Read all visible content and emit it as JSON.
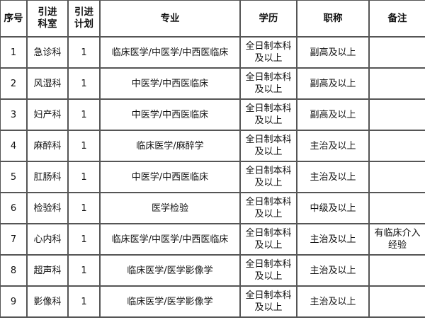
{
  "headers": [
    "序号",
    "引进科室",
    "引进计划",
    "专业",
    "学历",
    "职称",
    "备注"
  ],
  "rows": [
    [
      "1",
      "急诊科",
      "1",
      "临床医学/中医学/中西医临床",
      "全日制本科及以上",
      "副高及以上",
      ""
    ],
    [
      "2",
      "风湿科",
      "1",
      "中医学/中西医临床",
      "全日制本科及以上",
      "副高及以上",
      ""
    ],
    [
      "3",
      "妇产科",
      "1",
      "中医学/中西医临床",
      "全日制本科及以上",
      "副高及以上",
      ""
    ],
    [
      "4",
      "麻醉科",
      "1",
      "临床医学/麻醉学",
      "全日制本科及以上",
      "主治及以上",
      ""
    ],
    [
      "5",
      "肛肠科",
      "1",
      "中医学/中西医临床",
      "全日制本科及以上",
      "主治及以上",
      ""
    ],
    [
      "6",
      "检验科",
      "1",
      "医学检验",
      "全日制本科及以上",
      "中级及以上",
      ""
    ],
    [
      "7",
      "心内科",
      "1",
      "临床医学/中医学/中西医临床",
      "全日制本科及以上",
      "主治及以上",
      "有临床介入经验"
    ],
    [
      "8",
      "超声科",
      "1",
      "临床医学/医学影像学",
      "全日制本科及以上",
      "主治及以上",
      ""
    ],
    [
      "9",
      "影像科",
      "1",
      "临床医学/医学影像学",
      "全日制本科及以上",
      "主治及以上",
      ""
    ]
  ]
}
